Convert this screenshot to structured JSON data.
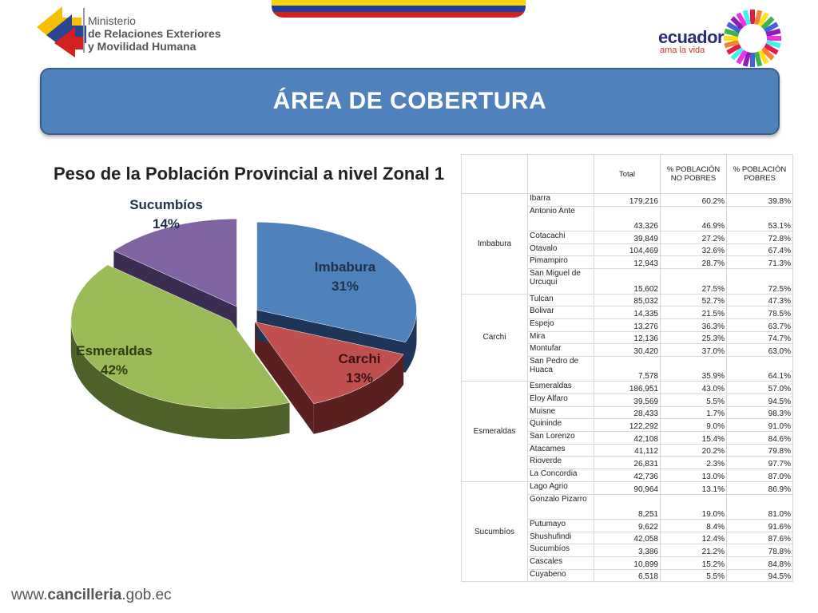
{
  "header": {
    "ministry_line1": "Ministerio",
    "ministry_line2": "de Relaciones Exteriores",
    "ministry_line3": "y Movilidad Humana",
    "brand_word": "ecuador",
    "brand_tagline": "ama la vida"
  },
  "banner": {
    "title": "ÁREA DE COBERTURA"
  },
  "colors": {
    "banner": "#4f81bd",
    "imbabura": "#4f81bd",
    "carchi": "#c0504d",
    "esmeraldas": "#9bbb59",
    "sucumbios": "#8064a2"
  },
  "chart_data": {
    "type": "pie",
    "title": "Peso de la Población Provincial a nivel Zonal 1",
    "slices": [
      {
        "label": "Imbabura",
        "value": 31,
        "pct_label": "31%"
      },
      {
        "label": "Carchi",
        "value": 13,
        "pct_label": "13%"
      },
      {
        "label": "Esmeraldas",
        "value": 42,
        "pct_label": "42%"
      },
      {
        "label": "Sucumbíos",
        "value": 14,
        "pct_label": "14%"
      }
    ]
  },
  "table": {
    "headers": [
      "",
      "",
      "Total",
      "% POBLACIÓN NO POBRES",
      "% POBLACIÓN POBRES"
    ],
    "groups": [
      {
        "province": "Imbabura",
        "rows": [
          {
            "mun": "Ibarra",
            "total": "179,216",
            "no_pobres": "60.2%",
            "pobres": "39.8%"
          },
          {
            "mun": "Antonio Ante",
            "total": "43,326",
            "no_pobres": "46.9%",
            "pobres": "53.1%",
            "tall": true
          },
          {
            "mun": "Cotacachi",
            "total": "39,849",
            "no_pobres": "27.2%",
            "pobres": "72.8%"
          },
          {
            "mun": "Otavalo",
            "total": "104,469",
            "no_pobres": "32.6%",
            "pobres": "67.4%"
          },
          {
            "mun": "Pimampiro",
            "total": "12,943",
            "no_pobres": "28.7%",
            "pobres": "71.3%"
          },
          {
            "mun": "San Miguel de Urcuqui",
            "total": "15,602",
            "no_pobres": "27.5%",
            "pobres": "72.5%",
            "tall": true
          }
        ]
      },
      {
        "province": "Carchi",
        "rows": [
          {
            "mun": "Tulcan",
            "total": "85,032",
            "no_pobres": "52.7%",
            "pobres": "47.3%"
          },
          {
            "mun": "Bolivar",
            "total": "14,335",
            "no_pobres": "21.5%",
            "pobres": "78.5%"
          },
          {
            "mun": "Espejo",
            "total": "13,276",
            "no_pobres": "36.3%",
            "pobres": "63.7%"
          },
          {
            "mun": "Mira",
            "total": "12,136",
            "no_pobres": "25.3%",
            "pobres": "74.7%"
          },
          {
            "mun": "Montufar",
            "total": "30,420",
            "no_pobres": "37.0%",
            "pobres": "63.0%"
          },
          {
            "mun": "San Pedro de Huaca",
            "total": "7,578",
            "no_pobres": "35.9%",
            "pobres": "64.1%",
            "tall": true
          }
        ]
      },
      {
        "province": "Esmeraldas",
        "rows": [
          {
            "mun": "Esmeraldas",
            "total": "186,951",
            "no_pobres": "43.0%",
            "pobres": "57.0%"
          },
          {
            "mun": "Eloy Alfaro",
            "total": "39,569",
            "no_pobres": "5.5%",
            "pobres": "94.5%"
          },
          {
            "mun": "Muisne",
            "total": "28,433",
            "no_pobres": "1.7%",
            "pobres": "98.3%"
          },
          {
            "mun": "Quininde",
            "total": "122,292",
            "no_pobres": "9.0%",
            "pobres": "91.0%"
          },
          {
            "mun": "San Lorenzo",
            "total": "42,108",
            "no_pobres": "15.4%",
            "pobres": "84.6%"
          },
          {
            "mun": "Atacames",
            "total": "41,112",
            "no_pobres": "20.2%",
            "pobres": "79.8%"
          },
          {
            "mun": "Rioverde",
            "total": "26,831",
            "no_pobres": "2.3%",
            "pobres": "97.7%"
          },
          {
            "mun": "La Concordia",
            "total": "42,736",
            "no_pobres": "13.0%",
            "pobres": "87.0%"
          }
        ]
      },
      {
        "province": "Sucumbíos",
        "rows": [
          {
            "mun": "Lago Agrio",
            "total": "90,964",
            "no_pobres": "13.1%",
            "pobres": "86.9%"
          },
          {
            "mun": "Gonzalo Pizarro",
            "total": "8,251",
            "no_pobres": "19.0%",
            "pobres": "81.0%",
            "tall": true
          },
          {
            "mun": "Putumayo",
            "total": "9,622",
            "no_pobres": "8.4%",
            "pobres": "91.6%"
          },
          {
            "mun": "Shushufindi",
            "total": "42,058",
            "no_pobres": "12.4%",
            "pobres": "87.6%"
          },
          {
            "mun": "Sucumbíos",
            "total": "3,386",
            "no_pobres": "21.2%",
            "pobres": "78.8%"
          },
          {
            "mun": "Cascales",
            "total": "10,899",
            "no_pobres": "15.2%",
            "pobres": "84.8%"
          },
          {
            "mun": "Cuyabeno",
            "total": "6,518",
            "no_pobres": "5.5%",
            "pobres": "94.5%"
          }
        ]
      }
    ]
  },
  "footer": {
    "url_prefix": "www.",
    "url_main": "cancilleria",
    "url_suffix": ".gob.ec"
  }
}
